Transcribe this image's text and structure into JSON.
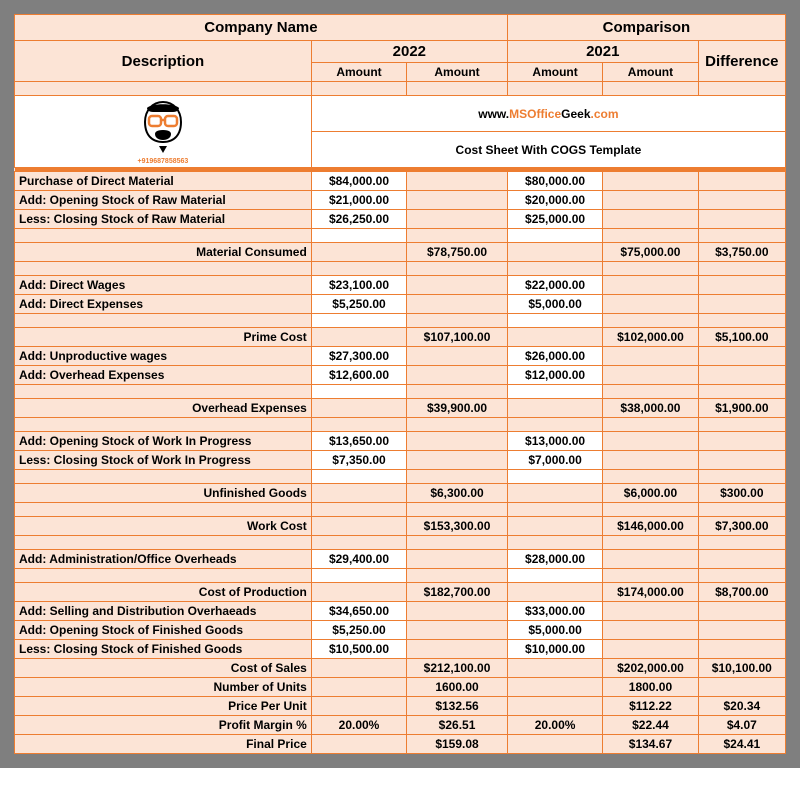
{
  "site": {
    "www": "www.",
    "ms": "MS",
    "office": "Office",
    "geek": "Geek",
    "com": ".com",
    "phone": "+919687858563"
  },
  "subtitle": "Cost Sheet With COGS Template",
  "head": {
    "company": "Company Name",
    "comparison": "Comparison",
    "description": "Description",
    "y2022": "2022",
    "y2021": "2021",
    "difference": "Difference",
    "amount": "Amount"
  },
  "rows": [
    {
      "t": "data",
      "desc": "Purchase of Direct Material",
      "a": "$84,000.00",
      "b": "",
      "c": "$80,000.00",
      "d": "",
      "e": "",
      "aw": true,
      "bw": false,
      "cw": true,
      "dw": false,
      "ew": false
    },
    {
      "t": "data",
      "desc": "Add: Opening Stock of Raw Material",
      "a": "$21,000.00",
      "b": "",
      "c": "$20,000.00",
      "d": "",
      "e": "",
      "aw": true,
      "bw": false,
      "cw": true,
      "dw": false,
      "ew": false
    },
    {
      "t": "data",
      "desc": "Less: Closing Stock of Raw Material",
      "a": "$26,250.00",
      "b": "",
      "c": "$25,000.00",
      "d": "",
      "e": "",
      "aw": true,
      "bw": false,
      "cw": true,
      "dw": false,
      "ew": false
    },
    {
      "t": "pretotal"
    },
    {
      "t": "total",
      "desc": "Material Consumed",
      "a": "",
      "b": "$78,750.00",
      "c": "",
      "d": "$75,000.00",
      "e": "$3,750.00"
    },
    {
      "t": "spacer"
    },
    {
      "t": "data",
      "desc": "Add: Direct Wages",
      "a": "$23,100.00",
      "b": "",
      "c": "$22,000.00",
      "d": "",
      "e": "",
      "aw": true,
      "bw": false,
      "cw": true,
      "dw": false,
      "ew": false
    },
    {
      "t": "data",
      "desc": "Add: Direct Expenses",
      "a": "$5,250.00",
      "b": "",
      "c": "$5,000.00",
      "d": "",
      "e": "",
      "aw": true,
      "bw": false,
      "cw": true,
      "dw": false,
      "ew": false
    },
    {
      "t": "pretotal"
    },
    {
      "t": "total",
      "desc": "Prime Cost",
      "a": "",
      "b": "$107,100.00",
      "c": "",
      "d": "$102,000.00",
      "e": "$5,100.00"
    },
    {
      "t": "data",
      "desc": "Add: Unproductive wages",
      "a": "$27,300.00",
      "b": "",
      "c": "$26,000.00",
      "d": "",
      "e": "",
      "aw": true,
      "bw": false,
      "cw": true,
      "dw": false,
      "ew": false
    },
    {
      "t": "data",
      "desc": "Add: Overhead Expenses",
      "a": "$12,600.00",
      "b": "",
      "c": "$12,000.00",
      "d": "",
      "e": "",
      "aw": true,
      "bw": false,
      "cw": true,
      "dw": false,
      "ew": false
    },
    {
      "t": "pretotal"
    },
    {
      "t": "total",
      "desc": "Overhead Expenses",
      "a": "",
      "b": "$39,900.00",
      "c": "",
      "d": "$38,000.00",
      "e": "$1,900.00"
    },
    {
      "t": "spacer"
    },
    {
      "t": "data",
      "desc": "Add: Opening Stock of Work In Progress",
      "a": "$13,650.00",
      "b": "",
      "c": "$13,000.00",
      "d": "",
      "e": "",
      "aw": true,
      "bw": false,
      "cw": true,
      "dw": false,
      "ew": false
    },
    {
      "t": "data",
      "desc": "Less: Closing Stock of Work In Progress",
      "a": "$7,350.00",
      "b": "",
      "c": "$7,000.00",
      "d": "",
      "e": "",
      "aw": true,
      "bw": false,
      "cw": true,
      "dw": false,
      "ew": false
    },
    {
      "t": "pretotal"
    },
    {
      "t": "total",
      "desc": "Unfinished Goods",
      "a": "",
      "b": "$6,300.00",
      "c": "",
      "d": "$6,000.00",
      "e": "$300.00"
    },
    {
      "t": "spacer"
    },
    {
      "t": "total",
      "desc": "Work Cost",
      "a": "",
      "b": "$153,300.00",
      "c": "",
      "d": "$146,000.00",
      "e": "$7,300.00"
    },
    {
      "t": "spacer"
    },
    {
      "t": "data",
      "desc": "Add: Administration/Office Overheads",
      "a": "$29,400.00",
      "b": "",
      "c": "$28,000.00",
      "d": "",
      "e": "",
      "aw": true,
      "bw": false,
      "cw": true,
      "dw": false,
      "ew": false
    },
    {
      "t": "pretotal"
    },
    {
      "t": "total",
      "desc": "Cost of Production",
      "a": "",
      "b": "$182,700.00",
      "c": "",
      "d": "$174,000.00",
      "e": "$8,700.00"
    },
    {
      "t": "data",
      "desc": "Add: Selling and Distribution Overhaeads",
      "a": "$34,650.00",
      "b": "",
      "c": "$33,000.00",
      "d": "",
      "e": "",
      "aw": true,
      "bw": false,
      "cw": true,
      "dw": false,
      "ew": false
    },
    {
      "t": "data",
      "desc": "Add: Opening Stock of Finished Goods",
      "a": "$5,250.00",
      "b": "",
      "c": "$5,000.00",
      "d": "",
      "e": "",
      "aw": true,
      "bw": false,
      "cw": true,
      "dw": false,
      "ew": false
    },
    {
      "t": "data",
      "desc": "Less: Closing Stock of Finished Goods",
      "a": "$10,500.00",
      "b": "",
      "c": "$10,000.00",
      "d": "",
      "e": "",
      "aw": true,
      "bw": false,
      "cw": true,
      "dw": false,
      "ew": false
    },
    {
      "t": "total",
      "desc": "Cost of Sales",
      "a": "",
      "b": "$212,100.00",
      "c": "",
      "d": "$202,000.00",
      "e": "$10,100.00"
    },
    {
      "t": "total",
      "desc": "Number of Units",
      "a": "",
      "b": "1600.00",
      "c": "",
      "d": "1800.00",
      "e": ""
    },
    {
      "t": "total",
      "desc": "Price Per Unit",
      "a": "",
      "b": "$132.56",
      "c": "",
      "d": "$112.22",
      "e": "$20.34"
    },
    {
      "t": "total",
      "desc": "Profit Margin %",
      "a": "20.00%",
      "b": "$26.51",
      "c": "20.00%",
      "d": "$22.44",
      "e": "$4.07"
    },
    {
      "t": "total",
      "desc": "Final Price",
      "a": "",
      "b": "$159.08",
      "c": "",
      "d": "$134.67",
      "e": "$24.41"
    }
  ],
  "style": {
    "grid_color": "#ed7d31",
    "bg_color": "#fce4d6",
    "outer_bg": "#7f7f7f",
    "white": "#ffffff",
    "font_bold": 700
  }
}
